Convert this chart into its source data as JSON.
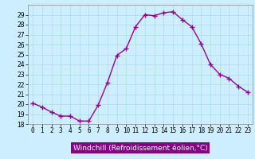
{
  "x": [
    0,
    1,
    2,
    3,
    4,
    5,
    6,
    7,
    8,
    9,
    10,
    11,
    12,
    13,
    14,
    15,
    16,
    17,
    18,
    19,
    20,
    21,
    22,
    23
  ],
  "y": [
    20.1,
    19.7,
    19.2,
    18.8,
    18.8,
    18.3,
    18.3,
    19.9,
    22.2,
    24.9,
    25.6,
    27.8,
    29.0,
    28.9,
    29.2,
    29.3,
    28.5,
    27.8,
    26.1,
    24.0,
    23.0,
    22.6,
    21.8,
    21.2
  ],
  "line_color": "#990099",
  "marker": "+",
  "marker_size": 4,
  "marker_lw": 1.0,
  "line_width": 1.0,
  "bg_color": "#cceeff",
  "grid_color": "#aadddd",
  "xlabel": "Windchill (Refroidissement éolien,°C)",
  "xlim": [
    -0.5,
    23.5
  ],
  "ylim": [
    18,
    30
  ],
  "yticks": [
    18,
    19,
    20,
    21,
    22,
    23,
    24,
    25,
    26,
    27,
    28,
    29
  ],
  "xticks": [
    0,
    1,
    2,
    3,
    4,
    5,
    6,
    7,
    8,
    9,
    10,
    11,
    12,
    13,
    14,
    15,
    16,
    17,
    18,
    19,
    20,
    21,
    22,
    23
  ],
  "xlabel_color": "#ffffff",
  "xlabel_bg": "#880088",
  "tick_fontsize": 5.5,
  "xlabel_fontsize": 6.5,
  "spine_color": "#888888"
}
